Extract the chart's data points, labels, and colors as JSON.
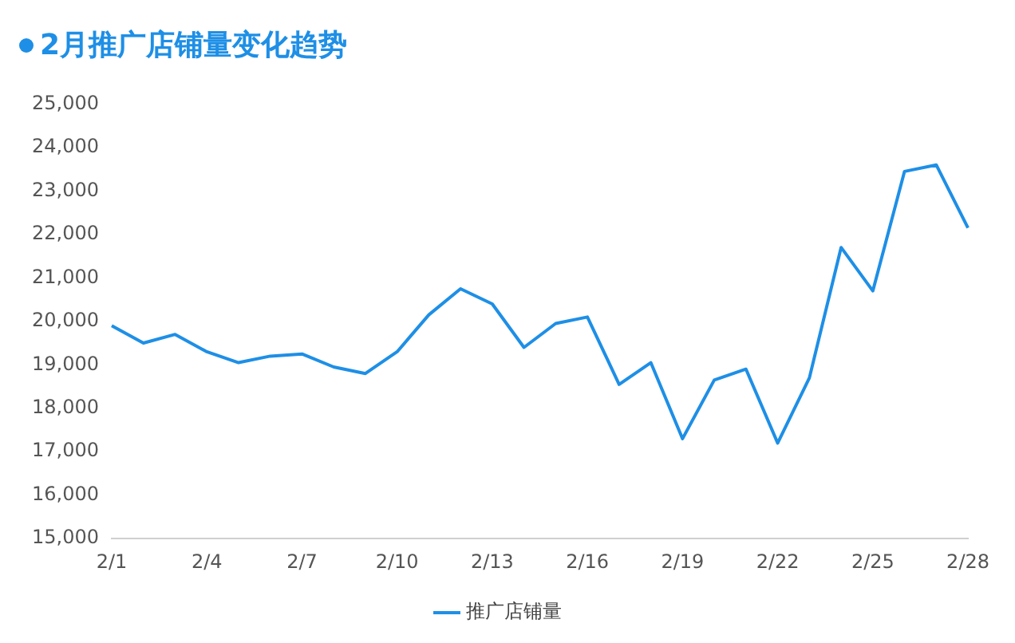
{
  "chart_data": {
    "type": "line",
    "title": "2月推广店铺量变化趋势",
    "categories": [
      "2/1",
      null,
      null,
      "2/4",
      null,
      null,
      "2/7",
      null,
      null,
      "2/10",
      null,
      null,
      "2/13",
      null,
      null,
      "2/16",
      null,
      null,
      "2/19",
      null,
      null,
      "2/22",
      null,
      null,
      "2/25",
      null,
      null,
      "2/28"
    ],
    "series": [
      {
        "name": "推广店铺量",
        "color": "#1e8fe6",
        "values": [
          19900,
          19500,
          19700,
          19300,
          19050,
          19200,
          19250,
          18950,
          18800,
          19300,
          20150,
          20750,
          20400,
          19400,
          19950,
          20100,
          18550,
          19050,
          17300,
          18650,
          18900,
          17200,
          18700,
          21700,
          20700,
          23450,
          23600,
          22150
        ]
      }
    ],
    "ylim": [
      15000,
      25000
    ],
    "yticks": [
      {
        "value": 15000,
        "label": "15,000"
      },
      {
        "value": 16000,
        "label": "16,000"
      },
      {
        "value": 17000,
        "label": "17,000"
      },
      {
        "value": 18000,
        "label": "18,000"
      },
      {
        "value": 19000,
        "label": "19,000"
      },
      {
        "value": 20000,
        "label": "20,000"
      },
      {
        "value": 21000,
        "label": "21,000"
      },
      {
        "value": 22000,
        "label": "22,000"
      },
      {
        "value": 23000,
        "label": "23,000"
      },
      {
        "value": 24000,
        "label": "24,000"
      },
      {
        "value": 25000,
        "label": "25,000"
      }
    ],
    "grid": false,
    "legend": "bottom",
    "marker": "none",
    "line_style": "solid"
  }
}
